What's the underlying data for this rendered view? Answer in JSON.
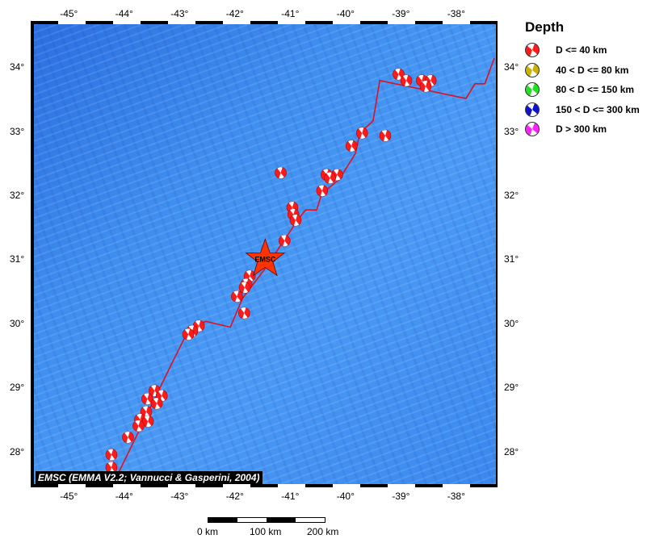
{
  "map": {
    "extent": {
      "lon": [
        -45.66,
        -37.31
      ],
      "lat": [
        27.49,
        34.67
      ]
    },
    "lon_ticks": [
      "-45°",
      "-44°",
      "-43°",
      "-42°",
      "-41°",
      "-40°",
      "-39°",
      "-38°"
    ],
    "lat_ticks": [
      "34°",
      "33°",
      "32°",
      "31°",
      "30°",
      "29°",
      "28°"
    ],
    "lon_values": [
      -45,
      -44,
      -43,
      -42,
      -41,
      -40,
      -39,
      -38
    ],
    "lat_values": [
      34,
      33,
      32,
      31,
      30,
      29,
      28
    ],
    "caption": "EMSC (EMMA V2.2; Vannucci & Gasperini, 2004)",
    "epicenter": {
      "label": "EMSC",
      "lon": -41.48,
      "lat": 31.0,
      "color": "#ff3300"
    },
    "plate_boundary_color": "#e01020",
    "plate_boundary": [
      [
        -44.23,
        27.49
      ],
      [
        -43.13,
        29.44
      ],
      [
        -42.84,
        29.94
      ],
      [
        -42.55,
        30.03
      ],
      [
        -42.11,
        29.94
      ],
      [
        -41.89,
        30.39
      ],
      [
        -41.45,
        30.89
      ],
      [
        -41.16,
        31.27
      ],
      [
        -40.87,
        31.64
      ],
      [
        -40.75,
        31.77
      ],
      [
        -40.55,
        31.77
      ],
      [
        -40.46,
        32.02
      ],
      [
        -40.14,
        32.25
      ],
      [
        -39.85,
        32.65
      ],
      [
        -39.77,
        32.97
      ],
      [
        -39.53,
        33.16
      ],
      [
        -39.41,
        33.79
      ],
      [
        -37.85,
        33.51
      ],
      [
        -37.69,
        33.74
      ],
      [
        -37.51,
        33.74
      ],
      [
        -37.34,
        34.14
      ]
    ],
    "events": [
      [
        -39.07,
        33.89
      ],
      [
        -38.93,
        33.79
      ],
      [
        -38.65,
        33.79
      ],
      [
        -38.49,
        33.79
      ],
      [
        -38.58,
        33.7
      ],
      [
        -39.73,
        32.97
      ],
      [
        -39.92,
        32.77
      ],
      [
        -39.31,
        32.93
      ],
      [
        -41.2,
        32.35
      ],
      [
        -40.37,
        32.32
      ],
      [
        -40.18,
        32.32
      ],
      [
        -40.31,
        32.27
      ],
      [
        -40.45,
        32.07
      ],
      [
        -40.99,
        31.81
      ],
      [
        -40.97,
        31.7
      ],
      [
        -40.93,
        31.61
      ],
      [
        -41.13,
        31.29
      ],
      [
        -41.76,
        30.74
      ],
      [
        -41.82,
        30.61
      ],
      [
        -41.85,
        30.56
      ],
      [
        -41.99,
        30.42
      ],
      [
        -41.86,
        30.16
      ],
      [
        -42.68,
        29.96
      ],
      [
        -42.8,
        29.88
      ],
      [
        -42.87,
        29.83
      ],
      [
        -43.48,
        28.95
      ],
      [
        -43.35,
        28.87
      ],
      [
        -43.61,
        28.82
      ],
      [
        -43.44,
        28.75
      ],
      [
        -43.63,
        28.62
      ],
      [
        -43.74,
        28.5
      ],
      [
        -43.6,
        28.47
      ],
      [
        -43.77,
        28.4
      ],
      [
        -43.96,
        28.22
      ],
      [
        -44.26,
        27.95
      ],
      [
        -44.26,
        27.75
      ]
    ]
  },
  "legend": {
    "title": "Depth",
    "items": [
      {
        "label": "D <= 40 km",
        "color": "#ff1a1a"
      },
      {
        "label": "40 < D <= 80 km",
        "color": "#c8b400"
      },
      {
        "label": "80 < D <= 150 km",
        "color": "#22e022"
      },
      {
        "label": "150 < D <= 300 km",
        "color": "#1010d0"
      },
      {
        "label": "D > 300 km",
        "color": "#ff20ff"
      }
    ]
  },
  "scale_bar": {
    "labels": [
      "0 km",
      "100 km",
      "200 km"
    ]
  }
}
